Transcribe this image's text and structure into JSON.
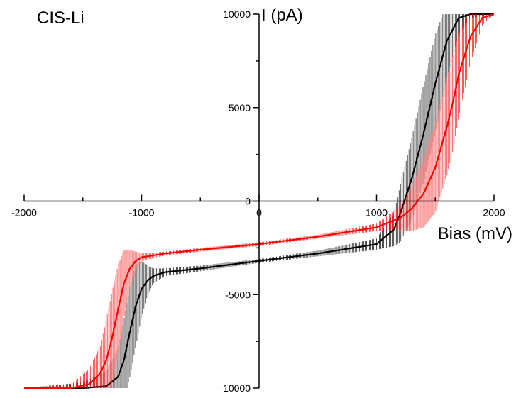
{
  "chart_data": {
    "type": "line",
    "title": "CIS-Li",
    "xlabel": "Bias (mV)",
    "ylabel": "I (pA)",
    "xlim": [
      -2000,
      2000
    ],
    "ylim": [
      -10000,
      10000
    ],
    "x_ticks": [
      -2000,
      -1000,
      0,
      1000,
      2000
    ],
    "x_tick_labels": [
      "-2000",
      "-1000",
      "0",
      "1000",
      "2000"
    ],
    "y_ticks": [
      10000,
      5000,
      0,
      -5000,
      -10000
    ],
    "y_tick_labels": [
      "10000",
      "5000",
      "0",
      "-5000",
      "-10000"
    ],
    "grid": false,
    "legend": "none",
    "series": [
      {
        "color": "#000000",
        "x": [
          -2000,
          -1500,
          -1300,
          -1200,
          -1150,
          -1100,
          -1050,
          -1000,
          -950,
          -900,
          -800,
          -500,
          0,
          500,
          1000,
          1150,
          1200,
          1300,
          1400,
          1500,
          1600,
          1700,
          1800,
          2000
        ],
        "y": [
          -10000,
          -10000,
          -9900,
          -9400,
          -8500,
          -7000,
          -5600,
          -4700,
          -4250,
          -4000,
          -3800,
          -3600,
          -3200,
          -2800,
          -2300,
          -1500,
          -700,
          1200,
          3600,
          6300,
          8600,
          9800,
          10000,
          10000
        ],
        "noise": [
          0,
          300,
          800,
          1500,
          2200,
          2400,
          2200,
          1500,
          800,
          400,
          200,
          150,
          100,
          150,
          300,
          900,
          1500,
          2200,
          2600,
          2600,
          2000,
          900,
          200,
          0
        ]
      },
      {
        "color": "#ff0000",
        "x": [
          -2000,
          -1600,
          -1450,
          -1350,
          -1300,
          -1250,
          -1200,
          -1150,
          -1100,
          -1050,
          -1000,
          -800,
          -500,
          0,
          500,
          1000,
          1200,
          1300,
          1400,
          1500,
          1600,
          1650,
          1700,
          1800,
          1900,
          2000
        ],
        "y": [
          -10000,
          -10000,
          -9800,
          -9200,
          -8500,
          -7300,
          -5800,
          -4400,
          -3600,
          -3200,
          -3000,
          -2800,
          -2600,
          -2300,
          -1900,
          -1400,
          -900,
          -400,
          400,
          1800,
          4000,
          5300,
          6800,
          8800,
          9800,
          10000
        ],
        "noise": [
          0,
          200,
          800,
          1500,
          2200,
          2500,
          2400,
          1800,
          1000,
          500,
          200,
          100,
          100,
          100,
          100,
          200,
          600,
          1200,
          1800,
          2400,
          2600,
          2600,
          2300,
          1400,
          400,
          0
        ]
      }
    ]
  }
}
